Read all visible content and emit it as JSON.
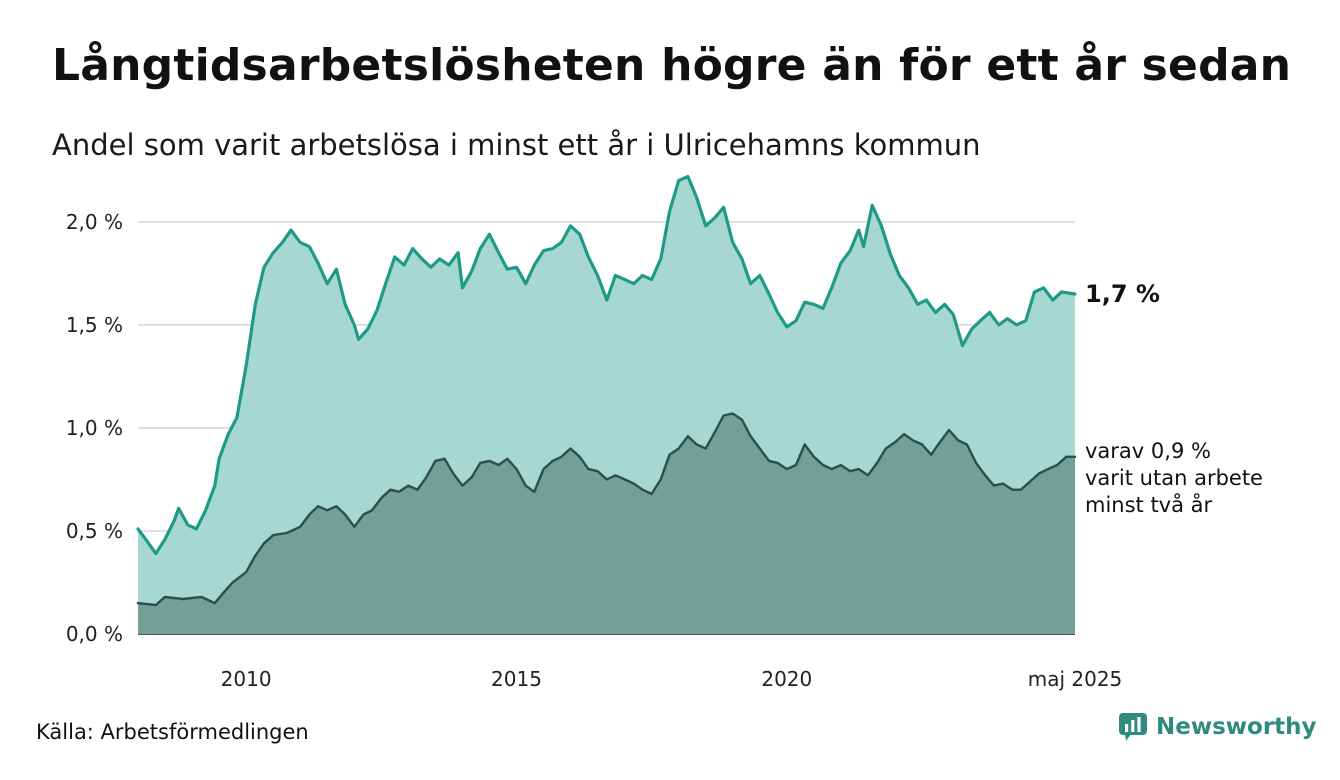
{
  "header": {
    "title": "Långtidsarbetslösheten högre än för ett år sedan",
    "subtitle": "Andel som varit arbetslösa i minst ett år i Ulricehamns kommun"
  },
  "footer": {
    "source": "Källa: Arbetsförmedlingen",
    "brand": "Newsworthy"
  },
  "colors": {
    "series1_line": "#1f9a87",
    "series1_area": "#a6d7d0",
    "series2_line": "#2d4f46",
    "series2_area": "#729f96",
    "grid": "#d6d6d6",
    "brand": "#2e8b7e"
  },
  "chart_data": {
    "type": "area",
    "xlabel": "",
    "ylabel": "",
    "ylim": [
      0,
      2.3
    ],
    "grid": true,
    "y_ticks": [
      {
        "value": 0.0,
        "label": "0,0 %"
      },
      {
        "value": 0.5,
        "label": "0,5 %"
      },
      {
        "value": 1.0,
        "label": "1,0 %"
      },
      {
        "value": 1.5,
        "label": "1,5 %"
      },
      {
        "value": 2.0,
        "label": "2,0 %"
      }
    ],
    "x_ticks": [
      {
        "value": 2010,
        "label": "2010"
      },
      {
        "value": 2015,
        "label": "2015"
      },
      {
        "value": 2020,
        "label": "2020"
      },
      {
        "value": 2025.33,
        "label": "maj 2025"
      }
    ],
    "end_label": "1,7 %",
    "sub_label_lines": [
      "varav 0,9 %",
      "varit utan arbete",
      "minst två år"
    ],
    "series": [
      {
        "points": [
          [
            2008.0,
            0.51
          ],
          [
            2008.17,
            0.45
          ],
          [
            2008.33,
            0.39
          ],
          [
            2008.5,
            0.46
          ],
          [
            2008.67,
            0.55
          ],
          [
            2008.75,
            0.61
          ],
          [
            2008.92,
            0.53
          ],
          [
            2009.08,
            0.51
          ],
          [
            2009.25,
            0.6
          ],
          [
            2009.42,
            0.72
          ],
          [
            2009.5,
            0.85
          ],
          [
            2009.67,
            0.97
          ],
          [
            2009.83,
            1.05
          ],
          [
            2010.0,
            1.3
          ],
          [
            2010.17,
            1.6
          ],
          [
            2010.33,
            1.78
          ],
          [
            2010.5,
            1.85
          ],
          [
            2010.67,
            1.9
          ],
          [
            2010.83,
            1.96
          ],
          [
            2011.0,
            1.9
          ],
          [
            2011.17,
            1.88
          ],
          [
            2011.33,
            1.8
          ],
          [
            2011.5,
            1.7
          ],
          [
            2011.67,
            1.77
          ],
          [
            2011.83,
            1.6
          ],
          [
            2012.0,
            1.5
          ],
          [
            2012.08,
            1.43
          ],
          [
            2012.25,
            1.48
          ],
          [
            2012.42,
            1.57
          ],
          [
            2012.58,
            1.7
          ],
          [
            2012.75,
            1.83
          ],
          [
            2012.92,
            1.79
          ],
          [
            2013.08,
            1.87
          ],
          [
            2013.25,
            1.82
          ],
          [
            2013.42,
            1.78
          ],
          [
            2013.58,
            1.82
          ],
          [
            2013.75,
            1.79
          ],
          [
            2013.92,
            1.85
          ],
          [
            2014.0,
            1.68
          ],
          [
            2014.17,
            1.76
          ],
          [
            2014.33,
            1.87
          ],
          [
            2014.5,
            1.94
          ],
          [
            2014.67,
            1.85
          ],
          [
            2014.83,
            1.77
          ],
          [
            2015.0,
            1.78
          ],
          [
            2015.17,
            1.7
          ],
          [
            2015.33,
            1.79
          ],
          [
            2015.5,
            1.86
          ],
          [
            2015.67,
            1.87
          ],
          [
            2015.83,
            1.9
          ],
          [
            2016.0,
            1.98
          ],
          [
            2016.17,
            1.94
          ],
          [
            2016.33,
            1.83
          ],
          [
            2016.5,
            1.74
          ],
          [
            2016.67,
            1.62
          ],
          [
            2016.83,
            1.74
          ],
          [
            2017.0,
            1.72
          ],
          [
            2017.17,
            1.7
          ],
          [
            2017.33,
            1.74
          ],
          [
            2017.5,
            1.72
          ],
          [
            2017.67,
            1.82
          ],
          [
            2017.83,
            2.05
          ],
          [
            2018.0,
            2.2
          ],
          [
            2018.17,
            2.22
          ],
          [
            2018.33,
            2.12
          ],
          [
            2018.5,
            1.98
          ],
          [
            2018.67,
            2.02
          ],
          [
            2018.83,
            2.07
          ],
          [
            2019.0,
            1.9
          ],
          [
            2019.17,
            1.82
          ],
          [
            2019.33,
            1.7
          ],
          [
            2019.5,
            1.74
          ],
          [
            2019.67,
            1.65
          ],
          [
            2019.83,
            1.56
          ],
          [
            2020.0,
            1.49
          ],
          [
            2020.17,
            1.52
          ],
          [
            2020.33,
            1.61
          ],
          [
            2020.5,
            1.6
          ],
          [
            2020.67,
            1.58
          ],
          [
            2020.83,
            1.68
          ],
          [
            2021.0,
            1.8
          ],
          [
            2021.17,
            1.86
          ],
          [
            2021.33,
            1.96
          ],
          [
            2021.42,
            1.88
          ],
          [
            2021.58,
            2.08
          ],
          [
            2021.75,
            1.98
          ],
          [
            2021.92,
            1.84
          ],
          [
            2022.08,
            1.74
          ],
          [
            2022.25,
            1.68
          ],
          [
            2022.42,
            1.6
          ],
          [
            2022.58,
            1.62
          ],
          [
            2022.75,
            1.56
          ],
          [
            2022.92,
            1.6
          ],
          [
            2023.08,
            1.55
          ],
          [
            2023.25,
            1.4
          ],
          [
            2023.42,
            1.48
          ],
          [
            2023.58,
            1.52
          ],
          [
            2023.75,
            1.56
          ],
          [
            2023.92,
            1.5
          ],
          [
            2024.08,
            1.53
          ],
          [
            2024.25,
            1.5
          ],
          [
            2024.42,
            1.52
          ],
          [
            2024.58,
            1.66
          ],
          [
            2024.75,
            1.68
          ],
          [
            2024.92,
            1.62
          ],
          [
            2025.08,
            1.66
          ],
          [
            2025.33,
            1.65
          ]
        ]
      },
      {
        "points": [
          [
            2008.0,
            0.15
          ],
          [
            2008.33,
            0.14
          ],
          [
            2008.5,
            0.18
          ],
          [
            2008.83,
            0.17
          ],
          [
            2009.17,
            0.18
          ],
          [
            2009.42,
            0.15
          ],
          [
            2009.58,
            0.2
          ],
          [
            2009.75,
            0.25
          ],
          [
            2010.0,
            0.3
          ],
          [
            2010.17,
            0.38
          ],
          [
            2010.33,
            0.44
          ],
          [
            2010.5,
            0.48
          ],
          [
            2010.75,
            0.49
          ],
          [
            2011.0,
            0.52
          ],
          [
            2011.17,
            0.58
          ],
          [
            2011.33,
            0.62
          ],
          [
            2011.5,
            0.6
          ],
          [
            2011.67,
            0.62
          ],
          [
            2011.83,
            0.58
          ],
          [
            2012.0,
            0.52
          ],
          [
            2012.17,
            0.58
          ],
          [
            2012.33,
            0.6
          ],
          [
            2012.5,
            0.66
          ],
          [
            2012.67,
            0.7
          ],
          [
            2012.83,
            0.69
          ],
          [
            2013.0,
            0.72
          ],
          [
            2013.17,
            0.7
          ],
          [
            2013.33,
            0.76
          ],
          [
            2013.5,
            0.84
          ],
          [
            2013.67,
            0.85
          ],
          [
            2013.83,
            0.78
          ],
          [
            2014.0,
            0.72
          ],
          [
            2014.17,
            0.76
          ],
          [
            2014.33,
            0.83
          ],
          [
            2014.5,
            0.84
          ],
          [
            2014.67,
            0.82
          ],
          [
            2014.83,
            0.85
          ],
          [
            2015.0,
            0.8
          ],
          [
            2015.17,
            0.72
          ],
          [
            2015.33,
            0.69
          ],
          [
            2015.5,
            0.8
          ],
          [
            2015.67,
            0.84
          ],
          [
            2015.83,
            0.86
          ],
          [
            2016.0,
            0.9
          ],
          [
            2016.17,
            0.86
          ],
          [
            2016.33,
            0.8
          ],
          [
            2016.5,
            0.79
          ],
          [
            2016.67,
            0.75
          ],
          [
            2016.83,
            0.77
          ],
          [
            2017.0,
            0.75
          ],
          [
            2017.17,
            0.73
          ],
          [
            2017.33,
            0.7
          ],
          [
            2017.5,
            0.68
          ],
          [
            2017.67,
            0.75
          ],
          [
            2017.83,
            0.87
          ],
          [
            2018.0,
            0.9
          ],
          [
            2018.17,
            0.96
          ],
          [
            2018.33,
            0.92
          ],
          [
            2018.5,
            0.9
          ],
          [
            2018.67,
            0.98
          ],
          [
            2018.83,
            1.06
          ],
          [
            2019.0,
            1.07
          ],
          [
            2019.17,
            1.04
          ],
          [
            2019.33,
            0.96
          ],
          [
            2019.5,
            0.9
          ],
          [
            2019.67,
            0.84
          ],
          [
            2019.83,
            0.83
          ],
          [
            2020.0,
            0.8
          ],
          [
            2020.17,
            0.82
          ],
          [
            2020.33,
            0.92
          ],
          [
            2020.5,
            0.86
          ],
          [
            2020.67,
            0.82
          ],
          [
            2020.83,
            0.8
          ],
          [
            2021.0,
            0.82
          ],
          [
            2021.17,
            0.79
          ],
          [
            2021.33,
            0.8
          ],
          [
            2021.5,
            0.77
          ],
          [
            2021.67,
            0.83
          ],
          [
            2021.83,
            0.9
          ],
          [
            2022.0,
            0.93
          ],
          [
            2022.17,
            0.97
          ],
          [
            2022.33,
            0.94
          ],
          [
            2022.5,
            0.92
          ],
          [
            2022.67,
            0.87
          ],
          [
            2022.83,
            0.93
          ],
          [
            2023.0,
            0.99
          ],
          [
            2023.17,
            0.94
          ],
          [
            2023.33,
            0.92
          ],
          [
            2023.5,
            0.83
          ],
          [
            2023.67,
            0.77
          ],
          [
            2023.83,
            0.72
          ],
          [
            2024.0,
            0.73
          ],
          [
            2024.17,
            0.7
          ],
          [
            2024.33,
            0.7
          ],
          [
            2024.5,
            0.74
          ],
          [
            2024.67,
            0.78
          ],
          [
            2024.83,
            0.8
          ],
          [
            2025.0,
            0.82
          ],
          [
            2025.17,
            0.86
          ],
          [
            2025.33,
            0.86
          ]
        ]
      }
    ]
  }
}
